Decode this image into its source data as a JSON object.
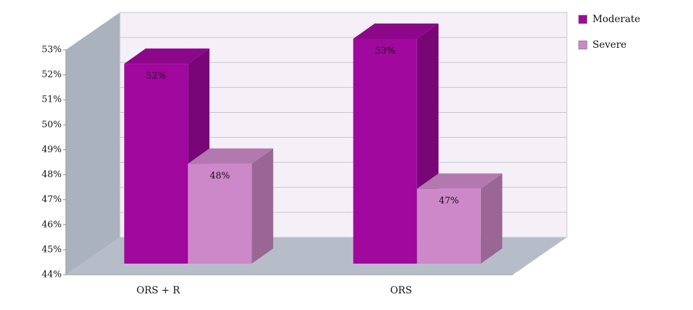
{
  "chart_data": {
    "type": "bar3d",
    "categories": [
      "ORS + R",
      "ORS"
    ],
    "series": [
      {
        "name": "Moderate",
        "color": "#a0089e",
        "values": [
          52,
          53
        ],
        "value_labels": [
          "52%",
          "53%"
        ]
      },
      {
        "name": "Severe",
        "color": "#cc88c8",
        "values": [
          48,
          47
        ],
        "value_labels": [
          "48%",
          "47%"
        ]
      }
    ],
    "ylim": [
      44,
      53
    ],
    "yticks": [
      {
        "value": 44,
        "label": "44%"
      },
      {
        "value": 45,
        "label": "45%"
      },
      {
        "value": 46,
        "label": "46%"
      },
      {
        "value": 47,
        "label": "47%"
      },
      {
        "value": 48,
        "label": "48%"
      },
      {
        "value": 49,
        "label": "49%"
      },
      {
        "value": 50,
        "label": "50%"
      },
      {
        "value": 51,
        "label": "51%"
      },
      {
        "value": 52,
        "label": "52%"
      },
      {
        "value": 53,
        "label": "53%"
      }
    ],
    "grid": true
  }
}
